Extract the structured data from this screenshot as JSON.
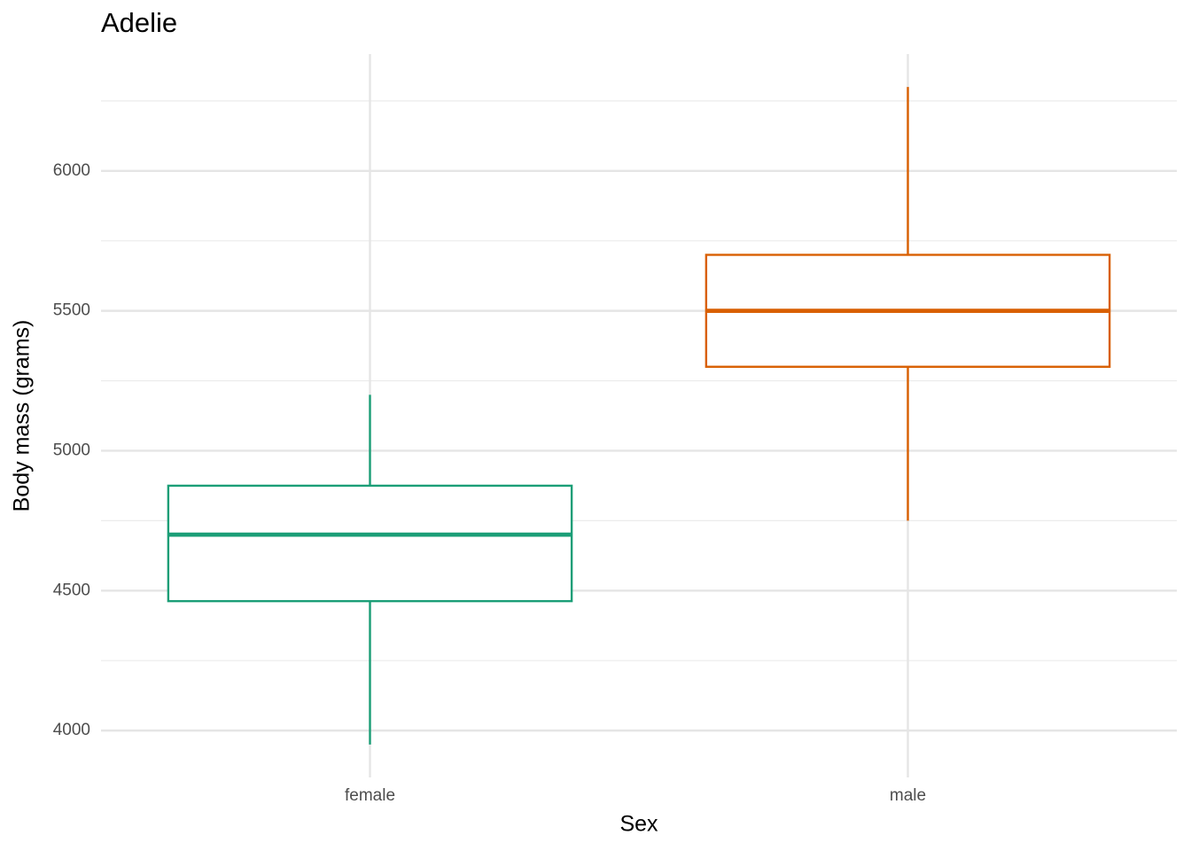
{
  "chart_data": {
    "type": "boxplot",
    "title": "Adelie",
    "x_label": "Sex",
    "y_label": "Body mass (grams)",
    "categories": [
      "female",
      "male"
    ],
    "colors": [
      "#1b9e77",
      "#d95f02"
    ],
    "whisker_low": [
      3950,
      4750
    ],
    "q1": [
      4462.5,
      5300
    ],
    "median": [
      4700,
      5500
    ],
    "q3": [
      4875,
      5700
    ],
    "whisker_high": [
      5200,
      6300
    ],
    "ylim": [
      3832.5,
      6417.5
    ],
    "yticks": [
      4000,
      4500,
      5000,
      5500,
      6000
    ],
    "yticks_minor": [
      4250,
      4750,
      5250,
      5750,
      6250
    ],
    "grid": true
  }
}
